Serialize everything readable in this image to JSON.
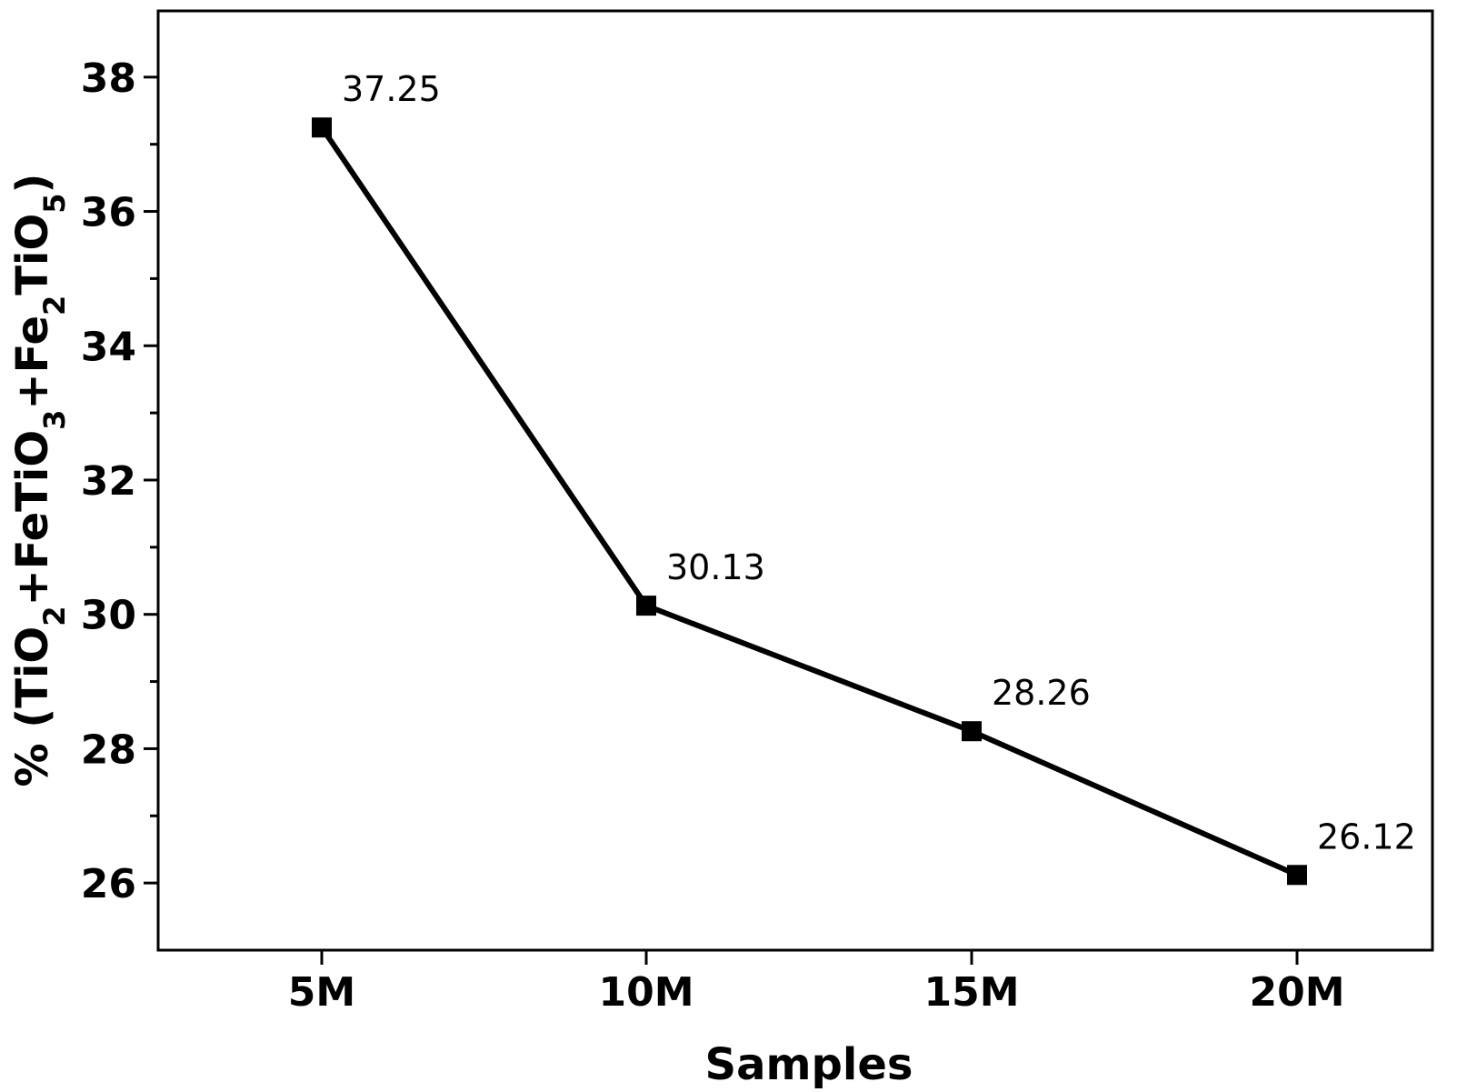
{
  "chart_data": {
    "type": "line",
    "categories": [
      "5M",
      "10M",
      "15M",
      "20M"
    ],
    "series": [
      {
        "values": [
          37.25,
          30.13,
          28.26,
          26.12
        ]
      }
    ],
    "data_labels": [
      "37.25",
      "30.13",
      "28.26",
      "26.12"
    ],
    "xlabel": "Samples",
    "ylabel": {
      "parts": [
        {
          "t": "% (TiO"
        },
        {
          "t": "2",
          "sub": true
        },
        {
          "t": "+FeTiO"
        },
        {
          "t": "3",
          "sub": true
        },
        {
          "t": "+Fe"
        },
        {
          "t": "2",
          "sub": true
        },
        {
          "t": "TiO"
        },
        {
          "t": "5",
          "sub": true
        },
        {
          "t": ")"
        }
      ]
    },
    "ylim": [
      25,
      39
    ],
    "yticks": [
      26,
      28,
      30,
      32,
      34,
      36,
      38
    ],
    "ytick_labels": [
      "26",
      "28",
      "30",
      "32",
      "34",
      "36",
      "38"
    ],
    "minor_y_step": 1,
    "grid": false,
    "line_color": "#000000",
    "marker": "square"
  }
}
